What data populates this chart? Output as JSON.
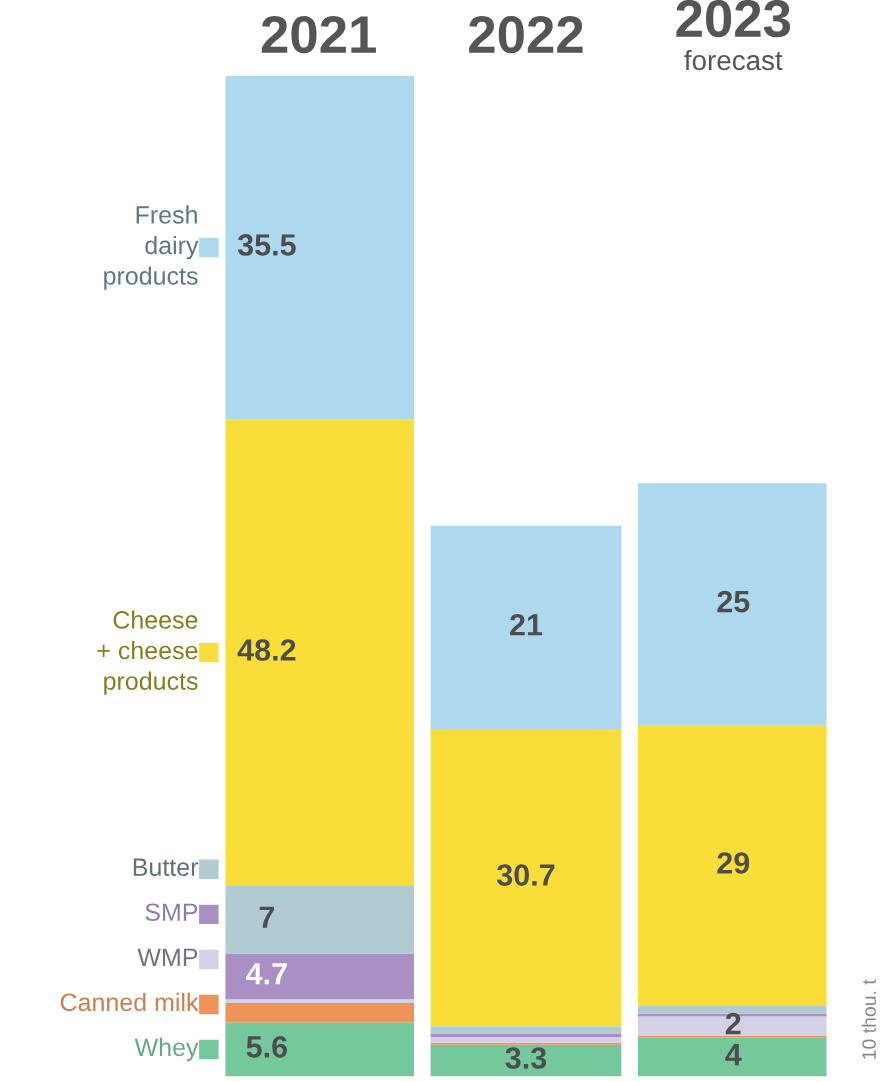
{
  "chart_data": {
    "type": "bar",
    "stacked": true,
    "categories": [
      "2021",
      "2022",
      "2023\nforecast"
    ],
    "series": [
      {
        "name": "Whey",
        "color": "#74c89b",
        "values": [
          5.6,
          3.3,
          4
        ],
        "value_labels": [
          "5.6",
          "3.3",
          "4"
        ]
      },
      {
        "name": "Canned milk",
        "color": "#ee9458",
        "values": [
          2,
          0.2,
          0.2
        ],
        "value_labels": [
          null,
          null,
          null
        ]
      },
      {
        "name": "WMP",
        "color": "#d4d0e8",
        "values": [
          0.4,
          0.6,
          2
        ],
        "value_labels": [
          null,
          null,
          "2"
        ]
      },
      {
        "name": "SMP",
        "color": "#a98fc3",
        "values": [
          4.7,
          0.3,
          0.3
        ],
        "value_labels": [
          "4.7",
          null,
          null
        ]
      },
      {
        "name": "Butter",
        "color": "#b0cbd2",
        "values": [
          7,
          0.8,
          0.8
        ],
        "value_labels": [
          "7",
          null,
          null
        ]
      },
      {
        "name": "Cheese\n+ cheese\nproducts",
        "color": "#f9de3a",
        "values": [
          48.2,
          30.7,
          29
        ],
        "value_labels": [
          "48.2",
          "30.7",
          "29"
        ]
      },
      {
        "name": "Fresh\ndairy\nproducts",
        "color": "#aed8ee",
        "values": [
          35.5,
          21,
          25
        ],
        "value_labels": [
          "35.5",
          "21",
          "25"
        ]
      }
    ],
    "legend": "left",
    "annotations": [
      "10 thou. t"
    ]
  }
}
